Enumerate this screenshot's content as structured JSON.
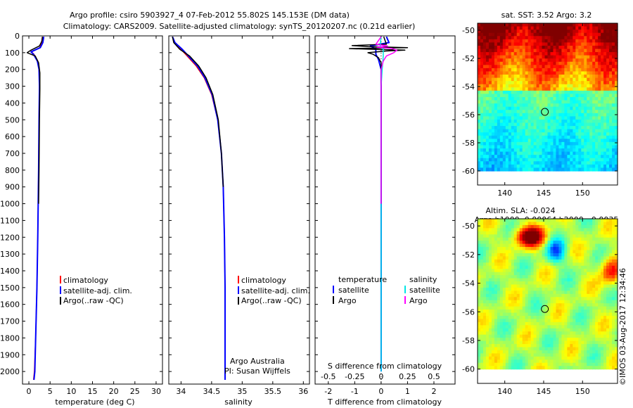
{
  "header": {
    "line1": "Argo profile: csiro 5903927_4 07-Feb-2012 55.802S 145.153E (DM data)",
    "line2": "Climatology: CARS2009. Satellite-adjusted climatology: synTS_20120207.nc (0.21d earlier)"
  },
  "colors": {
    "climatology": "#ff0000",
    "satellite": "#0000ff",
    "argo": "#000000",
    "sat_salinity": "#00e5e5",
    "argo_salinity": "#ff00ff"
  },
  "legend_profile": [
    "climatology",
    "satellite-adj. clim.",
    "Argo(..raw -QC)"
  ],
  "credit": {
    "line1": "Argo Australia",
    "line2": "PI: Susan Wijffels"
  },
  "diff_legend": {
    "temp_header": "temperature",
    "sal_header": "salinity",
    "satellite": "satellite",
    "argo": "Argo"
  },
  "map_sst": {
    "title": "sat. SST: 3.52 Argo: 3.2"
  },
  "map_sla": {
    "title1": "Altim. SLA: -0.024",
    "title2": "Argo h1000: 0.00064 h2000: -0.0035"
  },
  "stamp": "©IMOS 03-Aug-2017 12:34:46",
  "chart_data": [
    {
      "type": "line",
      "name": "temperature-profile",
      "xlabel": "temperature (deg C)",
      "ylabel": "",
      "xlim": [
        -1.5,
        31.5
      ],
      "ylim": [
        2075,
        0
      ],
      "xticks": [
        "0",
        "5",
        "10",
        "15",
        "20",
        "25",
        "30"
      ],
      "xtick_values": [
        0,
        5,
        10,
        15,
        20,
        25,
        30
      ],
      "yticks": [
        "0",
        "100",
        "200",
        "300",
        "400",
        "500",
        "600",
        "700",
        "800",
        "900",
        "1000",
        "1100",
        "1200",
        "1300",
        "1400",
        "1500",
        "1600",
        "1700",
        "1800",
        "1900",
        "2000"
      ],
      "ytick_values": [
        0,
        100,
        200,
        300,
        400,
        500,
        600,
        700,
        800,
        900,
        1000,
        1100,
        1200,
        1300,
        1400,
        1500,
        1600,
        1700,
        1800,
        1900,
        2000
      ],
      "series": [
        {
          "name": "climatology",
          "color_key": "climatology",
          "depth": [
            5,
            40,
            70,
            95,
            110,
            150,
            200,
            300,
            500,
            800,
            1000,
            1200,
            1500,
            1800,
            2000,
            2050
          ],
          "values": [
            3.2,
            3.0,
            2.6,
            0.6,
            1.2,
            2.1,
            2.4,
            2.5,
            2.4,
            2.3,
            2.2,
            2.1,
            1.9,
            1.6,
            1.3,
            1.1
          ]
        },
        {
          "name": "satellite-adj. clim.",
          "color_key": "satellite",
          "depth": [
            5,
            40,
            70,
            95,
            110,
            150,
            200,
            300,
            500,
            800,
            1000,
            1200,
            1500,
            1800,
            2000,
            2050
          ],
          "values": [
            3.5,
            3.3,
            2.7,
            0.5,
            1.1,
            2.0,
            2.4,
            2.5,
            2.4,
            2.3,
            2.2,
            2.1,
            1.9,
            1.6,
            1.4,
            1.2
          ]
        },
        {
          "name": "Argo(..raw -QC)",
          "color_key": "argo",
          "depth": [
            5,
            30,
            60,
            85,
            100,
            120,
            160,
            220,
            320,
            500,
            800,
            1000
          ],
          "values": [
            3.2,
            3.1,
            2.5,
            0.5,
            -0.4,
            1.5,
            2.3,
            2.6,
            2.6,
            2.5,
            2.4,
            2.3
          ]
        }
      ]
    },
    {
      "type": "line",
      "name": "salinity-profile",
      "xlabel": "salinity",
      "ylabel": "",
      "xlim": [
        33.8,
        36.1
      ],
      "ylim": [
        2075,
        0
      ],
      "xticks": [
        "34",
        "34.5",
        "35",
        "35.5",
        "36"
      ],
      "xtick_values": [
        34,
        34.5,
        35,
        35.5,
        36
      ],
      "series": [
        {
          "name": "climatology",
          "color_key": "climatology",
          "depth": [
            5,
            40,
            80,
            120,
            180,
            250,
            350,
            500,
            700,
            900,
            1200,
            1500,
            1800,
            2000,
            2050
          ],
          "values": [
            33.86,
            33.9,
            34.0,
            34.1,
            34.25,
            34.38,
            34.5,
            34.6,
            34.66,
            34.69,
            34.71,
            34.72,
            34.72,
            34.72,
            34.72
          ]
        },
        {
          "name": "satellite-adj. clim.",
          "color_key": "satellite",
          "depth": [
            5,
            40,
            80,
            120,
            180,
            250,
            350,
            500,
            700,
            900,
            1200,
            1500,
            1800,
            2000,
            2050
          ],
          "values": [
            33.86,
            33.9,
            34.02,
            34.12,
            34.27,
            34.39,
            34.51,
            34.6,
            34.66,
            34.69,
            34.71,
            34.72,
            34.72,
            34.72,
            34.72
          ]
        },
        {
          "name": "Argo(..raw -QC)",
          "color_key": "argo",
          "depth": [
            5,
            40,
            80,
            120,
            180,
            250,
            350,
            500,
            700,
            900
          ],
          "values": [
            33.86,
            33.88,
            33.98,
            34.14,
            34.29,
            34.41,
            34.52,
            34.61,
            34.66,
            34.69
          ]
        }
      ]
    },
    {
      "type": "line",
      "name": "difference-profile",
      "xlabel": "T difference from climatology",
      "xlabel_top": "S difference from climatology",
      "xlim": [
        -2.5,
        2.8
      ],
      "ylim": [
        2075,
        0
      ],
      "xticks": [
        "-2",
        "-1",
        "0",
        "1",
        "2"
      ],
      "xtick_values": [
        -2,
        -1,
        0,
        1,
        2
      ],
      "sticks_label": [
        "-0.5",
        "-0.25",
        "0",
        "0.25",
        "0.5"
      ],
      "sticks_value": [
        -0.5,
        -0.25,
        0,
        0.25,
        0.5
      ],
      "s_scale": 4,
      "series": [
        {
          "name": "T satellite",
          "kind": "T",
          "color_key": "satellite",
          "depth": [
            5,
            40,
            60,
            80,
            110,
            140,
            200,
            300,
            500,
            800,
            1200,
            1600,
            2000
          ],
          "values": [
            0.2,
            0.3,
            -0.4,
            -0.2,
            -0.2,
            -0.1,
            0.0,
            0.0,
            0.0,
            0.0,
            0.0,
            0.0,
            0.0
          ]
        },
        {
          "name": "T Argo",
          "kind": "T",
          "color_key": "argo",
          "depth": [
            5,
            50,
            58,
            64,
            70,
            76,
            80,
            85,
            90,
            100,
            110,
            130,
            160,
            200,
            300,
            500,
            800,
            1000
          ],
          "values": [
            0.1,
            0.2,
            -1.1,
            -0.5,
            1.0,
            -1.2,
            -0.3,
            0.9,
            0.2,
            -0.5,
            -0.3,
            -0.1,
            0.0,
            0.0,
            0.0,
            0.0,
            0.0,
            0.0
          ]
        },
        {
          "name": "S satellite",
          "kind": "S",
          "color_key": "sat_salinity",
          "depth": [
            5,
            60,
            80,
            120,
            200,
            300,
            500,
            800,
            1200,
            1600,
            2000
          ],
          "values": [
            0.0,
            -0.01,
            0.02,
            0.02,
            0.01,
            0.0,
            0.0,
            0.0,
            0.0,
            0.0,
            0.0
          ]
        },
        {
          "name": "S Argo",
          "kind": "S",
          "color_key": "argo_salinity",
          "depth": [
            5,
            50,
            60,
            68,
            75,
            85,
            100,
            120,
            150,
            200,
            300,
            500,
            800,
            1000
          ],
          "values": [
            0.0,
            -0.05,
            0.06,
            -0.04,
            0.1,
            0.15,
            0.12,
            0.05,
            0.02,
            0.0,
            0.0,
            0.0,
            0.0,
            0.0
          ]
        }
      ]
    },
    {
      "type": "heatmap",
      "name": "sst-map",
      "xlabel": "",
      "ylabel": "",
      "xlim": [
        136.5,
        154.5
      ],
      "ylim": [
        -61,
        -49.5
      ],
      "xticks": [
        "140",
        "145",
        "150"
      ],
      "xtick_values": [
        140,
        145,
        150
      ],
      "yticks": [
        "-50",
        "-52",
        "-54",
        "-56",
        "-58",
        "-60"
      ],
      "ytick_values": [
        -50,
        -52,
        -54,
        -56,
        -58,
        -60
      ],
      "data_ylim": [
        -60,
        -49.5
      ],
      "marker": {
        "lon": 145.153,
        "lat": -55.802
      }
    },
    {
      "type": "heatmap",
      "name": "sla-map",
      "xlim": [
        136.5,
        154.5
      ],
      "ylim": [
        -61,
        -49.5
      ],
      "xticks": [
        "140",
        "145",
        "150"
      ],
      "xtick_values": [
        140,
        145,
        150
      ],
      "yticks": [
        "-50",
        "-52",
        "-54",
        "-56",
        "-58",
        "-60"
      ],
      "ytick_values": [
        -50,
        -52,
        -54,
        -56,
        -58,
        -60
      ],
      "data_ylim": [
        -60,
        -49.5
      ],
      "marker": {
        "lon": 145.153,
        "lat": -55.802
      }
    }
  ]
}
